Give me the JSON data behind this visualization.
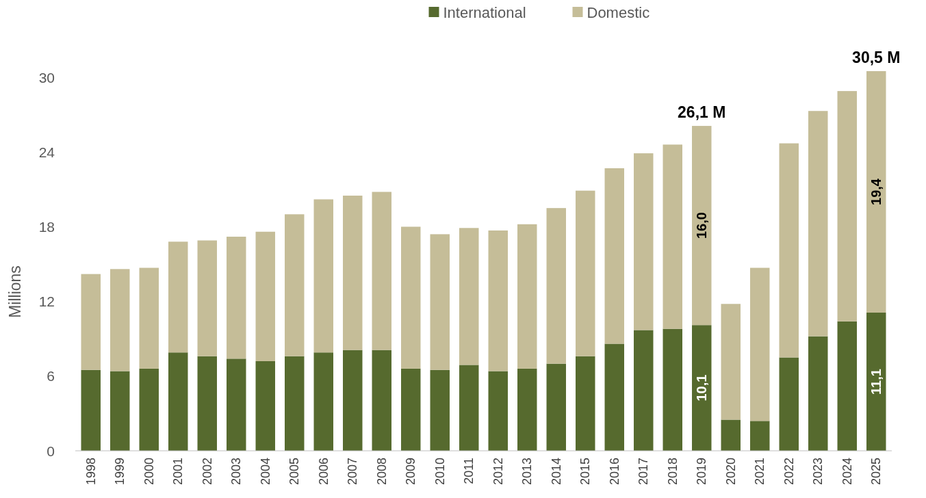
{
  "chart_data": {
    "type": "bar",
    "stacked": true,
    "ylabel": "Millions",
    "legend": "top",
    "grid": false,
    "categories": [
      "1998",
      "1999",
      "2000",
      "2001",
      "2002",
      "2003",
      "2004",
      "2005",
      "2006",
      "2007",
      "2008",
      "2009",
      "2010",
      "2011",
      "2012",
      "2013",
      "2014",
      "2015",
      "2016",
      "2017",
      "2018",
      "2019",
      "2020",
      "2021",
      "2022",
      "2023",
      "2024",
      "2025"
    ],
    "series": [
      {
        "name": "International",
        "color": "#566a2e",
        "values": [
          6.5,
          6.4,
          6.6,
          7.9,
          7.6,
          7.4,
          7.2,
          7.6,
          7.9,
          8.1,
          8.1,
          6.6,
          6.5,
          6.9,
          6.4,
          6.6,
          7.0,
          7.6,
          8.6,
          9.7,
          9.8,
          10.1,
          2.5,
          2.4,
          7.5,
          9.2,
          10.4,
          11.1
        ],
        "value_labels": [
          null,
          null,
          null,
          null,
          null,
          null,
          null,
          null,
          null,
          null,
          null,
          null,
          null,
          null,
          null,
          null,
          null,
          null,
          null,
          null,
          null,
          "10,1",
          null,
          null,
          null,
          null,
          null,
          "11,1"
        ]
      },
      {
        "name": "Domestic",
        "color": "#c5bd98",
        "values": [
          7.7,
          8.2,
          8.1,
          8.9,
          9.3,
          9.8,
          10.4,
          11.4,
          12.3,
          12.4,
          12.7,
          11.4,
          10.9,
          11.0,
          11.3,
          11.6,
          12.5,
          13.3,
          14.1,
          14.2,
          14.8,
          16.0,
          9.3,
          12.3,
          17.2,
          18.1,
          18.5,
          19.4
        ],
        "value_labels": [
          null,
          null,
          null,
          null,
          null,
          null,
          null,
          null,
          null,
          null,
          null,
          null,
          null,
          null,
          null,
          null,
          null,
          null,
          null,
          null,
          null,
          "16,0",
          null,
          null,
          null,
          null,
          null,
          "19,4"
        ]
      }
    ],
    "totals": [
      null,
      null,
      null,
      null,
      null,
      null,
      null,
      null,
      null,
      null,
      null,
      null,
      null,
      null,
      null,
      null,
      null,
      null,
      null,
      null,
      null,
      "26,1 M",
      null,
      null,
      null,
      null,
      null,
      "30,5 M"
    ],
    "ylim": [
      0,
      30.5
    ],
    "yticks": [
      0,
      6,
      12,
      18,
      24,
      30
    ]
  }
}
